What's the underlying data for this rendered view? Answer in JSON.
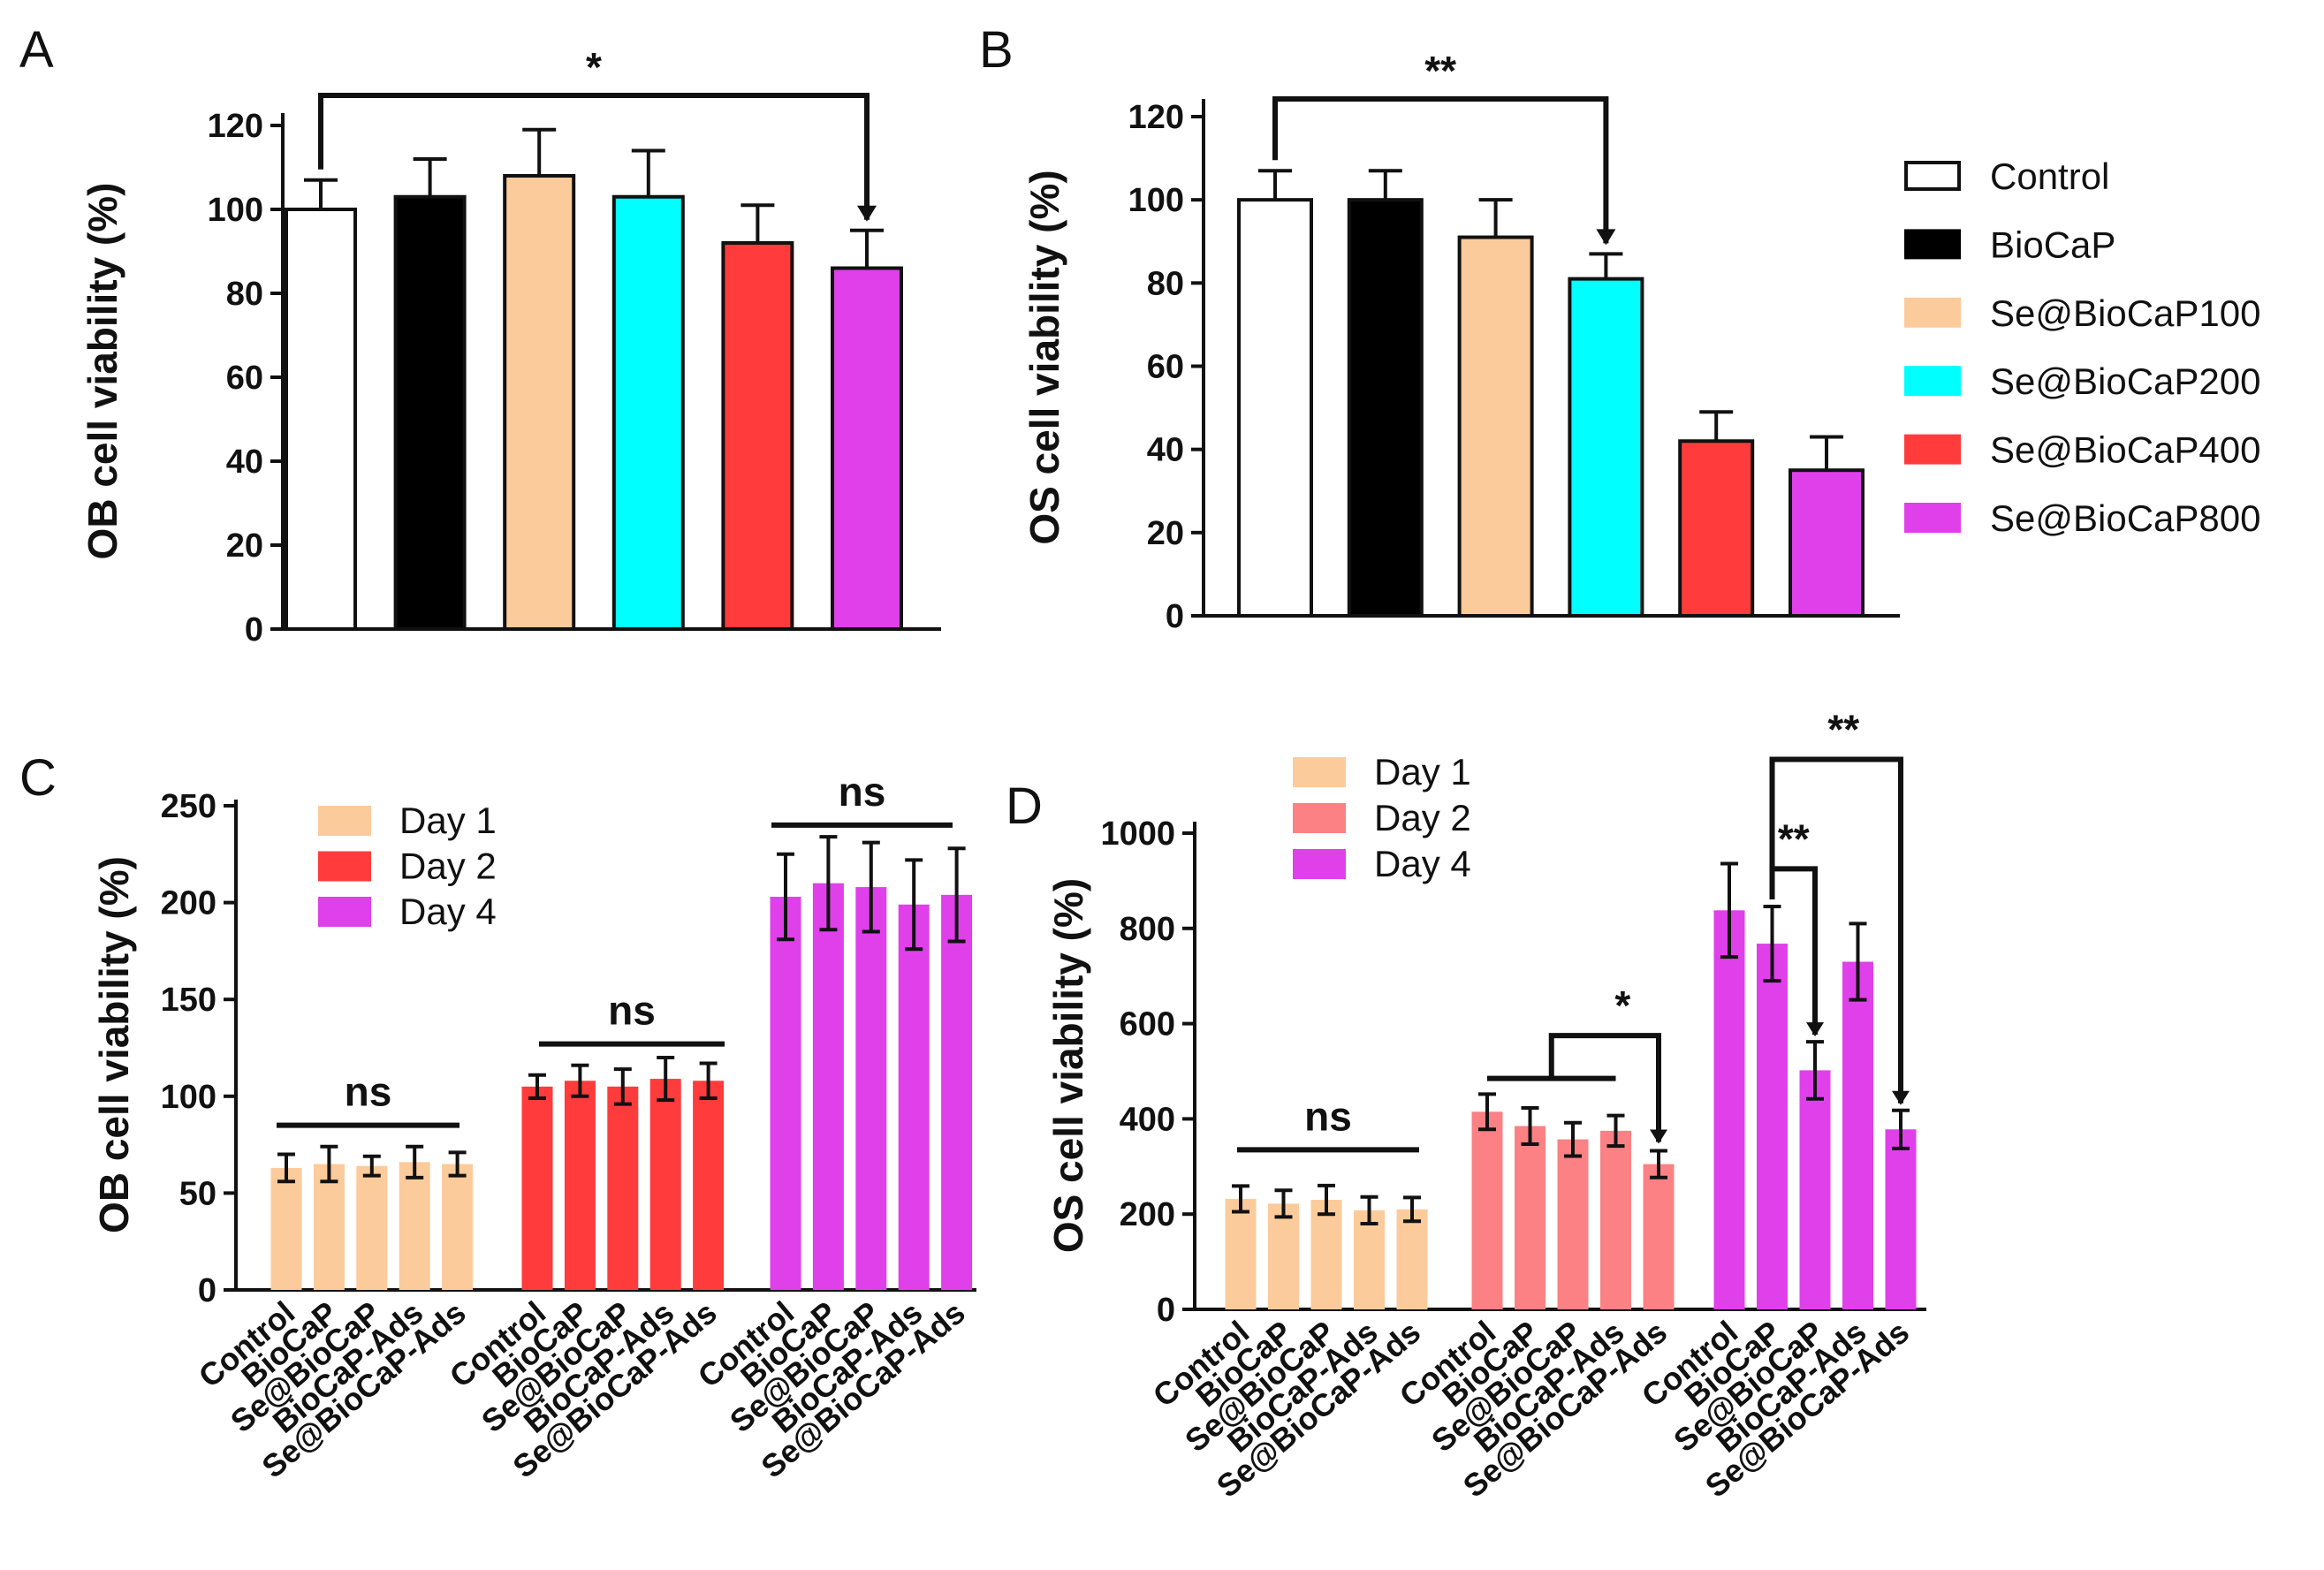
{
  "colors": {
    "Control": "#ffffff",
    "BioCaP": "#000000",
    "Se@BioCaP100": "#fccb9b",
    "Se@BioCaP200": "#00ffff",
    "Se@BioCaP400": "#ff3b3b",
    "Se@BioCaP800": "#e040ea",
    "Day 1 (C)": "#fccb9b",
    "Day 2 (C)": "#ff3b3b",
    "Day 4 (C)": "#e040ea",
    "Day 1 (D)": "#fccb9b",
    "Day 2 (D)": "#fb8184",
    "Day 4 (D)": "#e040ea"
  },
  "chart_data": [
    {
      "panel": "A",
      "type": "bar",
      "ylabel": "OB cell viability (%)",
      "ylim": [
        0,
        125
      ],
      "yticks": [
        0,
        20,
        40,
        60,
        80,
        100,
        120
      ],
      "categories": [
        "Control",
        "BioCaP",
        "Se@BioCaP100",
        "Se@BioCaP200",
        "Se@BioCaP400",
        "Se@BioCaP800"
      ],
      "values": [
        100,
        103,
        108,
        103,
        92,
        86
      ],
      "errors": [
        7,
        9,
        11,
        11,
        9,
        9
      ],
      "significance": [
        {
          "from": 0,
          "to": 5,
          "label": "*"
        }
      ]
    },
    {
      "panel": "B",
      "type": "bar",
      "ylabel": "OS cell viability (%)",
      "ylim": [
        0,
        125
      ],
      "yticks": [
        0,
        20,
        40,
        60,
        80,
        100,
        120
      ],
      "categories": [
        "Control",
        "BioCaP",
        "Se@BioCaP100",
        "Se@BioCaP200",
        "Se@BioCaP400",
        "Se@BioCaP800"
      ],
      "values": [
        100,
        100,
        91,
        81,
        42,
        35
      ],
      "errors": [
        7,
        7,
        9,
        6,
        7,
        8
      ],
      "significance": [
        {
          "from": 0,
          "to": 3,
          "label": "**"
        }
      ],
      "legend": [
        "Control",
        "BioCaP",
        "Se@BioCaP100",
        "Se@BioCaP200",
        "Se@BioCaP400",
        "Se@BioCaP800"
      ]
    },
    {
      "panel": "C",
      "type": "bar",
      "ylabel": "OB cell viability (%)",
      "ylim": [
        0,
        250
      ],
      "yticks": [
        0,
        50,
        100,
        150,
        200,
        250
      ],
      "categories": [
        "Control",
        "BioCaP",
        "Se@BioCaP",
        "BioCaP-Ads",
        "Se@BioCaP-Ads"
      ],
      "series": [
        {
          "name": "Day 1",
          "values": [
            63,
            65,
            64,
            66,
            65
          ],
          "errors": [
            7,
            9,
            5,
            8,
            6
          ]
        },
        {
          "name": "Day 2",
          "values": [
            105,
            108,
            105,
            109,
            108
          ],
          "errors": [
            6,
            8,
            9,
            11,
            9
          ]
        },
        {
          "name": "Day 4",
          "values": [
            203,
            210,
            208,
            199,
            204
          ],
          "errors": [
            22,
            24,
            23,
            23,
            24
          ]
        }
      ],
      "significance": [
        {
          "group": 0,
          "label": "ns"
        },
        {
          "group": 1,
          "label": "ns"
        },
        {
          "group": 2,
          "label": "ns"
        }
      ],
      "legend": [
        "Day 1",
        "Day 2",
        "Day 4"
      ]
    },
    {
      "panel": "D",
      "type": "bar",
      "ylabel": "OS cell viability (%)",
      "ylim": [
        0,
        1000
      ],
      "yticks": [
        0,
        200,
        400,
        600,
        800,
        1000
      ],
      "categories": [
        "Control",
        "BioCaP",
        "Se@BioCaP",
        "BioCaP-Ads",
        "Se@BioCaP-Ads"
      ],
      "series": [
        {
          "name": "Day 1",
          "values": [
            232,
            222,
            230,
            208,
            210
          ],
          "errors": [
            27,
            28,
            30,
            28,
            25
          ]
        },
        {
          "name": "Day 2",
          "values": [
            415,
            385,
            357,
            375,
            305
          ],
          "errors": [
            37,
            38,
            35,
            32,
            28
          ]
        },
        {
          "name": "Day 4",
          "values": [
            838,
            768,
            502,
            730,
            378
          ],
          "errors": [
            98,
            78,
            60,
            80,
            40
          ]
        }
      ],
      "significance": [
        {
          "group": 0,
          "label": "ns"
        },
        {
          "group": 1,
          "label": "*"
        },
        {
          "group": 2,
          "label": "**"
        },
        {
          "group": 2,
          "label": "**"
        }
      ],
      "legend": [
        "Day 1",
        "Day 2",
        "Day 4"
      ]
    }
  ]
}
